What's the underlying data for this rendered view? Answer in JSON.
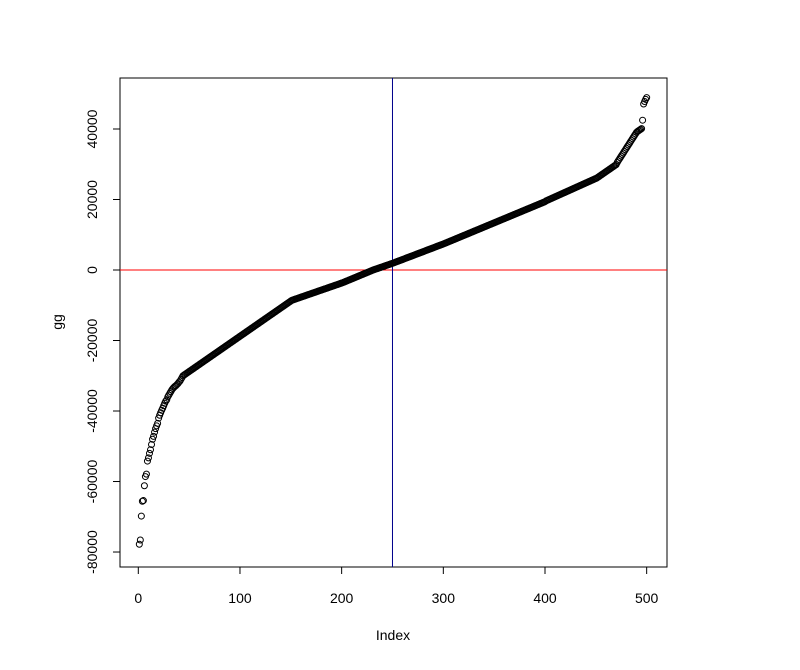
{
  "chart_data": {
    "type": "scatter",
    "xlabel": "Index",
    "ylabel": "gg",
    "xlim": [
      -18,
      520
    ],
    "ylim": [
      -84250,
      54470
    ],
    "xticks": [
      0,
      100,
      200,
      300,
      400,
      500
    ],
    "yticks": [
      -80000,
      -60000,
      -40000,
      -20000,
      0,
      20000,
      40000
    ],
    "color": "#000000",
    "hline": {
      "value": 0,
      "color": "#ff0000"
    },
    "vline": {
      "value": 250,
      "color": "#00008b"
    },
    "x": [
      1,
      2,
      3,
      4,
      5,
      6,
      7,
      8,
      9,
      10,
      11,
      12,
      13,
      14,
      15,
      16,
      17,
      18,
      19,
      20,
      21,
      22,
      23,
      24,
      25,
      26,
      27,
      28,
      29,
      30,
      31,
      32,
      33,
      34,
      35,
      36,
      37,
      38,
      39,
      40,
      41,
      42,
      43,
      44,
      45,
      46,
      47,
      48,
      49,
      50,
      51,
      52,
      53,
      54,
      55,
      56,
      57,
      58,
      59,
      60,
      61,
      62,
      63,
      64,
      65,
      66,
      67,
      68,
      69,
      70,
      71,
      72,
      73,
      74,
      75,
      76,
      77,
      78,
      79,
      80,
      81,
      82,
      83,
      84,
      85,
      86,
      87,
      88,
      89,
      90,
      91,
      92,
      93,
      94,
      95,
      96,
      97,
      98,
      99,
      100,
      101,
      102,
      103,
      104,
      105,
      106,
      107,
      108,
      109,
      110,
      111,
      112,
      113,
      114,
      115,
      116,
      117,
      118,
      119,
      120,
      121,
      122,
      123,
      124,
      125,
      126,
      127,
      128,
      129,
      130,
      131,
      132,
      133,
      134,
      135,
      136,
      137,
      138,
      139,
      140,
      141,
      142,
      143,
      144,
      145,
      146,
      147,
      148,
      149,
      150,
      151,
      152,
      153,
      154,
      155,
      156,
      157,
      158,
      159,
      160,
      161,
      162,
      163,
      164,
      165,
      166,
      167,
      168,
      169,
      170,
      171,
      172,
      173,
      174,
      175,
      176,
      177,
      178,
      179,
      180,
      181,
      182,
      183,
      184,
      185,
      186,
      187,
      188,
      189,
      190,
      191,
      192,
      193,
      194,
      195,
      196,
      197,
      198,
      199,
      200,
      201,
      202,
      203,
      204,
      205,
      206,
      207,
      208,
      209,
      210,
      211,
      212,
      213,
      214,
      215,
      216,
      217,
      218,
      219,
      220,
      221,
      222,
      223,
      224,
      225,
      226,
      227,
      228,
      229,
      230,
      231,
      232,
      233,
      234,
      235,
      236,
      237,
      238,
      239,
      240,
      241,
      242,
      243,
      244,
      245,
      246,
      247,
      248,
      249,
      250,
      251,
      252,
      253,
      254,
      255,
      256,
      257,
      258,
      259,
      260,
      261,
      262,
      263,
      264,
      265,
      266,
      267,
      268,
      269,
      270,
      271,
      272,
      273,
      274,
      275,
      276,
      277,
      278,
      279,
      280,
      281,
      282,
      283,
      284,
      285,
      286,
      287,
      288,
      289,
      290,
      291,
      292,
      293,
      294,
      295,
      296,
      297,
      298,
      299,
      300,
      301,
      302,
      303,
      304,
      305,
      306,
      307,
      308,
      309,
      310,
      311,
      312,
      313,
      314,
      315,
      316,
      317,
      318,
      319,
      320,
      321,
      322,
      323,
      324,
      325,
      326,
      327,
      328,
      329,
      330,
      331,
      332,
      333,
      334,
      335,
      336,
      337,
      338,
      339,
      340,
      341,
      342,
      343,
      344,
      345,
      346,
      347,
      348,
      349,
      350,
      351,
      352,
      353,
      354,
      355,
      356,
      357,
      358,
      359,
      360,
      361,
      362,
      363,
      364,
      365,
      366,
      367,
      368,
      369,
      370,
      371,
      372,
      373,
      374,
      375,
      376,
      377,
      378,
      379,
      380,
      381,
      382,
      383,
      384,
      385,
      386,
      387,
      388,
      389,
      390,
      391,
      392,
      393,
      394,
      395,
      396,
      397,
      398,
      399,
      400,
      401,
      402,
      403,
      404,
      405,
      406,
      407,
      408,
      409,
      410,
      411,
      412,
      413,
      414,
      415,
      416,
      417,
      418,
      419,
      420,
      421,
      422,
      423,
      424,
      425,
      426,
      427,
      428,
      429,
      430,
      431,
      432,
      433,
      434,
      435,
      436,
      437,
      438,
      439,
      440,
      441,
      442,
      443,
      444,
      445,
      446,
      447,
      448,
      449,
      450,
      451,
      452,
      453,
      454,
      455,
      456,
      457,
      458,
      459,
      460,
      461,
      462,
      463,
      464,
      465,
      466,
      467,
      468,
      469,
      470,
      471,
      472,
      473,
      474,
      475,
      476,
      477,
      478,
      479,
      480,
      481,
      482,
      483,
      484,
      485,
      486,
      487,
      488,
      489,
      490,
      491,
      492,
      493,
      494,
      495,
      496,
      497,
      498,
      499,
      500
    ],
    "values": [
      -77800,
      -76600,
      -69800,
      -65600,
      -65400,
      -61200,
      -58600,
      -57900,
      -54200,
      -53300,
      -52000,
      -51000,
      -49500,
      -48000,
      -47200,
      -46000,
      -45000,
      -44200,
      -43500,
      -42000,
      -41200,
      -40500,
      -39800,
      -39200,
      -38500,
      -37800,
      -37200,
      -36800,
      -36000,
      -35500,
      -35000,
      -34500,
      -34000,
      -33600,
      -33300,
      -33000,
      -32800,
      -32500,
      -32200,
      -31800,
      -31500,
      -31000,
      -30500,
      -30000,
      -29800,
      -29600,
      -29400,
      -29200,
      -29000,
      -28800,
      -28600,
      -28400,
      -28200,
      -28000,
      -27800,
      -27600,
      -27400,
      -27200,
      -27000,
      -26800,
      -26600,
      -26400,
      -26200,
      -26000,
      -25800,
      -25600,
      -25400,
      -25200,
      -25000,
      -24800,
      -24600,
      -24400,
      -24200,
      -24000,
      -23800,
      -23600,
      -23400,
      -23200,
      -23000,
      -22800,
      -22600,
      -22400,
      -22200,
      -22000,
      -21800,
      -21600,
      -21400,
      -21200,
      -21000,
      -20800,
      -20600,
      -20400,
      -20200,
      -20000,
      -19800,
      -19600,
      -19400,
      -19200,
      -19000,
      -18800,
      -18600,
      -18400,
      -18200,
      -18000,
      -17800,
      -17600,
      -17400,
      -17200,
      -17000,
      -16800,
      -16600,
      -16400,
      -16200,
      -16000,
      -15800,
      -15600,
      -15400,
      -15200,
      -15000,
      -14800,
      -14600,
      -14400,
      -14200,
      -14000,
      -13800,
      -13600,
      -13400,
      -13200,
      -13000,
      -12800,
      -12600,
      -12400,
      -12200,
      -12000,
      -11800,
      -11600,
      -11400,
      -11200,
      -11000,
      -10800,
      -10600,
      -10400,
      -10200,
      -10000,
      -9800,
      -9600,
      -9400,
      -9200,
      -9000,
      -8800,
      -8600,
      -8500,
      -8400,
      -8300,
      -8200,
      -8100,
      -8000,
      -7900,
      -7800,
      -7700,
      -7600,
      -7500,
      -7400,
      -7300,
      -7200,
      -7100,
      -7000,
      -6900,
      -6800,
      -6700,
      -6600,
      -6500,
      -6400,
      -6300,
      -6200,
      -6100,
      -6000,
      -5900,
      -5800,
      -5700,
      -5600,
      -5500,
      -5400,
      -5300,
      -5200,
      -5100,
      -5000,
      -4900,
      -4800,
      -4700,
      -4600,
      -4500,
      -4400,
      -4300,
      -4200,
      -4100,
      -4000,
      -3900,
      -3800,
      -3700,
      -3600,
      -3480,
      -3360,
      -3240,
      -3120,
      -3000,
      -2880,
      -2760,
      -2640,
      -2520,
      -2400,
      -2280,
      -2160,
      -2040,
      -1920,
      -1800,
      -1680,
      -1560,
      -1440,
      -1320,
      -1200,
      -1080,
      -960,
      -840,
      -720,
      -600,
      -480,
      -360,
      -240,
      -120,
      0,
      100,
      200,
      300,
      400,
      500,
      600,
      700,
      800,
      900,
      1000,
      1100,
      1200,
      1300,
      1400,
      1500,
      1600,
      1700,
      1800,
      1900,
      2000,
      2110,
      2220,
      2330,
      2440,
      2550,
      2660,
      2770,
      2880,
      2990,
      3100,
      3210,
      3320,
      3430,
      3540,
      3650,
      3760,
      3870,
      3980,
      4090,
      4200,
      4310,
      4420,
      4530,
      4640,
      4750,
      4860,
      4970,
      5080,
      5190,
      5300,
      5410,
      5520,
      5630,
      5740,
      5850,
      5960,
      6070,
      6180,
      6290,
      6400,
      6510,
      6620,
      6730,
      6840,
      6950,
      7060,
      7170,
      7280,
      7390,
      7500,
      7620,
      7740,
      7860,
      7980,
      8100,
      8220,
      8340,
      8460,
      8580,
      8700,
      8820,
      8940,
      9060,
      9180,
      9300,
      9420,
      9540,
      9660,
      9780,
      9900,
      10020,
      10140,
      10260,
      10380,
      10500,
      10620,
      10740,
      10860,
      10980,
      11100,
      11220,
      11340,
      11460,
      11580,
      11700,
      11820,
      11940,
      12060,
      12180,
      12300,
      12420,
      12540,
      12660,
      12780,
      12900,
      13020,
      13140,
      13260,
      13380,
      13500,
      13620,
      13740,
      13860,
      13980,
      14100,
      14220,
      14340,
      14460,
      14580,
      14700,
      14820,
      14940,
      15060,
      15180,
      15300,
      15420,
      15540,
      15660,
      15780,
      15900,
      16020,
      16140,
      16260,
      16380,
      16500,
      16620,
      16740,
      16860,
      16980,
      17100,
      17220,
      17340,
      17460,
      17580,
      17700,
      17820,
      17940,
      18060,
      18180,
      18300,
      18420,
      18540,
      18660,
      18780,
      18900,
      19020,
      19140,
      19260,
      19380,
      19600,
      19730,
      19860,
      19990,
      20120,
      20250,
      20380,
      20510,
      20640,
      20770,
      20900,
      21030,
      21160,
      21290,
      21420,
      21550,
      21680,
      21810,
      21940,
      22070,
      22200,
      22330,
      22460,
      22590,
      22720,
      22850,
      22980,
      23110,
      23240,
      23370,
      23500,
      23630,
      23760,
      23890,
      24020,
      24150,
      24280,
      24410,
      24540,
      24670,
      24800,
      24930,
      25060,
      25190,
      25320,
      25450,
      25580,
      25710,
      25840,
      25970,
      26100,
      26300,
      26500,
      26700,
      26900,
      27100,
      27300,
      27500,
      27700,
      27900,
      28100,
      28300,
      28500,
      28700,
      28900,
      29100,
      29300,
      29500,
      29700,
      29900,
      30500,
      30950,
      31400,
      31850,
      32300,
      32750,
      33200,
      33650,
      34100,
      34550,
      35000,
      35450,
      35900,
      36350,
      36800,
      37250,
      37700,
      38150,
      38600,
      39050,
      39300,
      39500,
      39700,
      39900,
      40100,
      42500,
      47100,
      47800,
      48400,
      48900
    ]
  }
}
